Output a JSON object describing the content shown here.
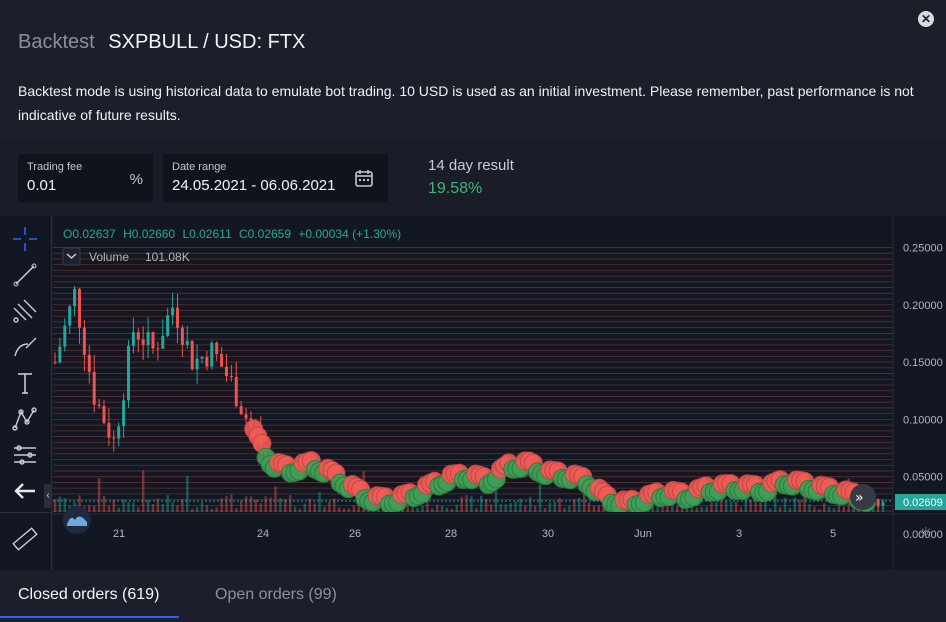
{
  "header": {
    "title_prefix": "Backtest",
    "title": "SXPBULL / USD: FTX",
    "description": "Backtest mode is using historical data to emulate bot trading. 10 USD is used as an initial investment. Please remember, past performance is not indicative of future results."
  },
  "controls": {
    "trading_fee": {
      "label": "Trading fee",
      "value": "0.01",
      "suffix": "%"
    },
    "date_range": {
      "label": "Date range",
      "value": "24.05.2021 - 06.06.2021"
    },
    "result": {
      "label": "14 day result",
      "value": "19.58%"
    }
  },
  "chart": {
    "ohlc": {
      "open": "O0.02637",
      "high": "H0.02660",
      "low": "L0.02611",
      "close": "C0.02659",
      "change": "+0.00034 (+1.30%)"
    },
    "volume_label": "Volume",
    "volume_value": "101.08K",
    "price_ticks": [
      "0.25000",
      "0.20000",
      "0.15000",
      "0.10000",
      "0.05000",
      "0.00000"
    ],
    "last_price": "0.02609",
    "date_ticks": [
      "21",
      "24",
      "26",
      "28",
      "30",
      "Jun",
      "3",
      "5"
    ]
  },
  "chart_data": {
    "type": "candlestick",
    "ylim": [
      0,
      0.26
    ],
    "y_ticks": [
      0.25,
      0.2,
      0.15,
      0.1,
      0.05,
      0.0
    ],
    "approx_close_series": [
      0.15,
      0.21,
      0.12,
      0.08,
      0.18,
      0.16,
      0.2,
      0.15,
      0.16,
      0.13,
      0.09,
      0.06,
      0.055,
      0.06,
      0.052,
      0.04,
      0.03,
      0.028,
      0.032,
      0.04,
      0.048,
      0.05,
      0.045,
      0.058,
      0.06,
      0.052,
      0.05,
      0.045,
      0.03,
      0.025,
      0.03,
      0.035,
      0.032,
      0.038,
      0.04,
      0.04,
      0.038,
      0.045,
      0.042,
      0.038,
      0.035,
      0.03,
      0.026
    ],
    "current_price": 0.02609,
    "colors": {
      "up": "#26a69a",
      "down": "#ef5350",
      "sell_markers": "#f05b57",
      "buy_markers": "#3f9e55"
    }
  },
  "tabs": {
    "closed": "Closed orders (619)",
    "open": "Open orders (99)"
  }
}
